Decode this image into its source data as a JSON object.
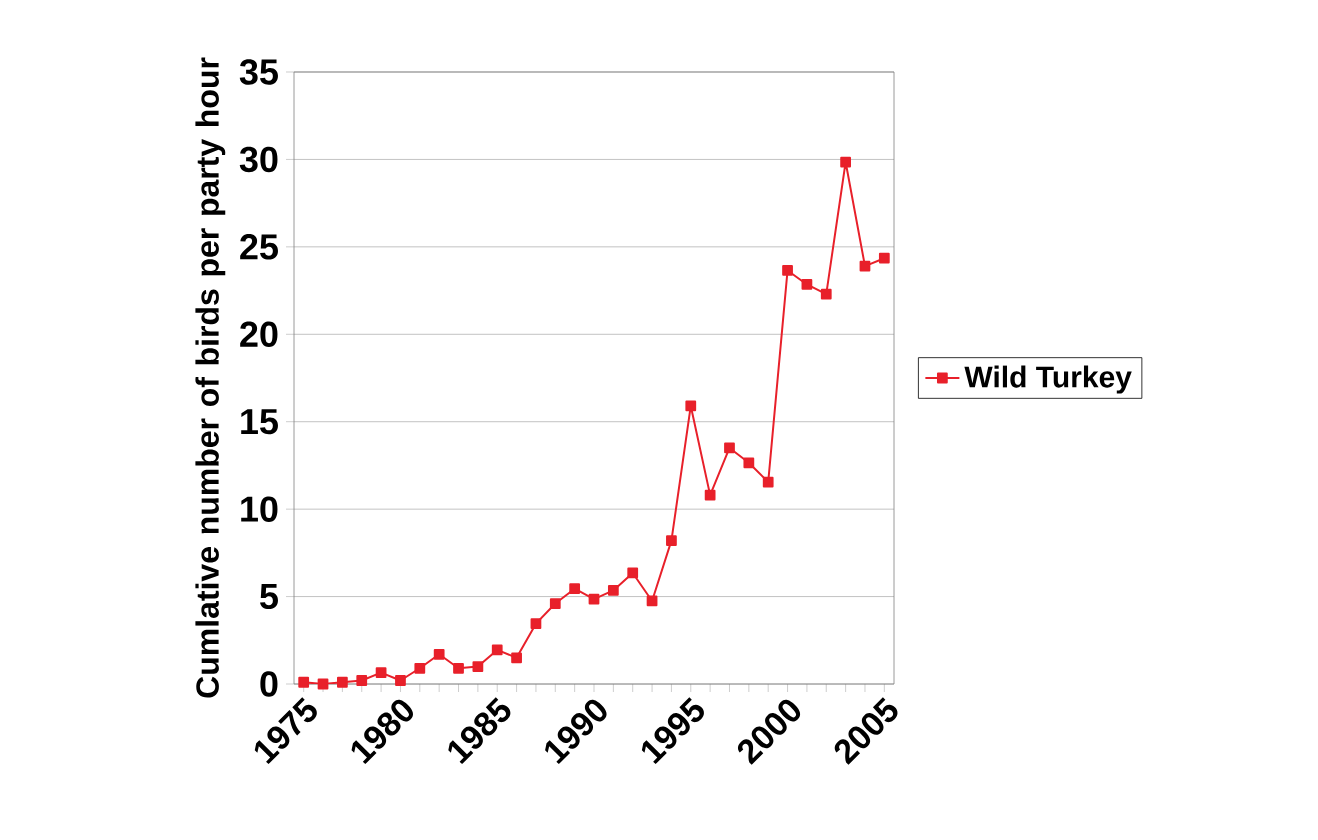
{
  "chart_data": {
    "type": "line",
    "ylabel": "Cumlative number of birds per party hour",
    "categories": [
      "1975",
      null,
      null,
      null,
      null,
      "1980",
      null,
      null,
      null,
      null,
      "1985",
      null,
      null,
      null,
      null,
      "1990",
      null,
      null,
      null,
      null,
      "1995",
      null,
      null,
      null,
      null,
      "2000",
      null,
      null,
      null,
      null,
      "2005"
    ],
    "series": [
      {
        "name": "Wild Turkey",
        "color": "#e8202a",
        "values": [
          0.1,
          0.0,
          0.1,
          0.2,
          0.65,
          0.2,
          0.9,
          1.7,
          0.9,
          1.0,
          1.95,
          1.5,
          3.45,
          4.6,
          5.45,
          4.85,
          5.35,
          6.35,
          4.75,
          8.2,
          15.9,
          10.8,
          13.5,
          12.65,
          11.55,
          23.65,
          22.85,
          22.3,
          29.85,
          23.9,
          24.35
        ]
      }
    ],
    "ylim": [
      0,
      35
    ],
    "yticks": [
      0,
      5,
      10,
      15,
      20,
      25,
      30,
      35
    ],
    "grid": "y",
    "legend": "right",
    "marker": "square",
    "line_style": "solid"
  }
}
